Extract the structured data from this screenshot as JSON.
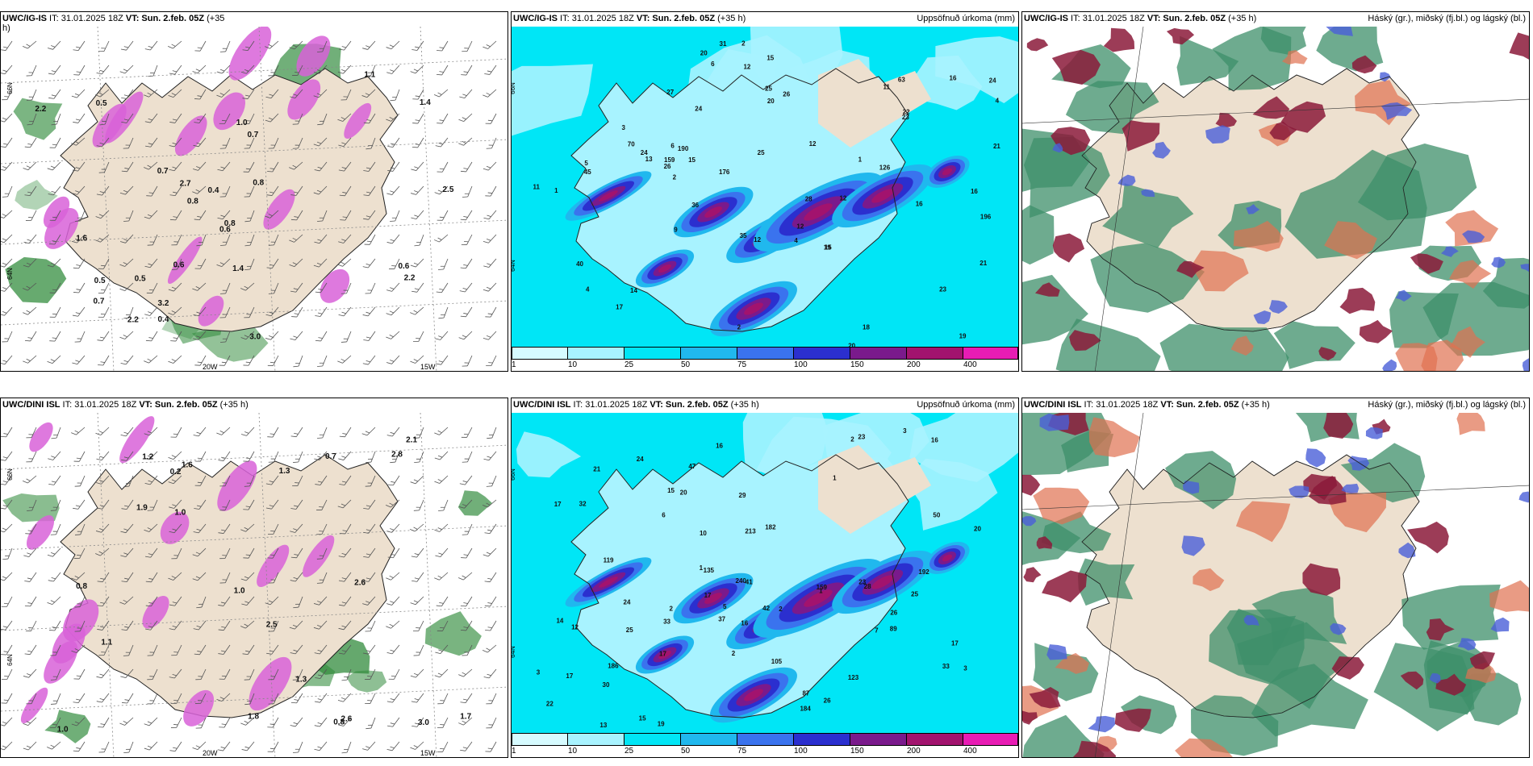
{
  "colors": {
    "land": "#ede0cf",
    "precip_scale": [
      "#d6fbff",
      "#a8f3ff",
      "#00e6f6",
      "#20b8ee",
      "#3a73ee",
      "#2b2fcf",
      "#7a1a8c",
      "#a2136e",
      "#e81cb4",
      "#f7b8ef"
    ],
    "snow": "#d862d8",
    "rain_green": "#2f8a3a",
    "cloud_high": "#8b1a3a",
    "cloud_mid": "#3e8f6a",
    "cloud_low": "#4a5fd8",
    "cloud_orange": "#e07050"
  },
  "colorbar": {
    "labels": [
      "1",
      "10",
      "25",
      "50",
      "75",
      "100",
      "150",
      "200",
      "400"
    ]
  },
  "rows": [
    {
      "panels": [
        {
          "kind": "wind",
          "title_model": "UWC/IG-IS",
          "title_rest": " IT: 31.01.2025 18Z ",
          "title_vt": "VT: Sun. 2.feb. 05Z",
          "title_lead": " (+35",
          "title_wrap": "h)",
          "right_title": "",
          "lon_labels": [
            "20W",
            "15W"
          ],
          "lat_labels": [
            "66N",
            "64N"
          ],
          "values": [
            "0.6",
            "0.4",
            "0.4",
            "0.5",
            "2.5",
            "1.0",
            "0.8",
            "0.7",
            "0.8",
            "0.5",
            "1.1",
            "0.8",
            "0.7",
            "0.5",
            "0.7",
            "2.7",
            "3.2",
            "2.2",
            "3.0",
            "0.6",
            "0.6",
            "1.4",
            "2.2",
            "1.6",
            "1.4",
            "2.2"
          ]
        },
        {
          "kind": "precip",
          "title_model": "UWC/IG-IS",
          "title_rest": " IT: 31.01.2025 18Z ",
          "title_vt": "VT: Sun. 2.feb. 05Z",
          "title_lead": " (+35 h)",
          "right_title": "Uppsöfnuð úrkoma (mm)",
          "lat_labels": [
            "66N",
            "64N"
          ],
          "values": [
            "6",
            "2",
            "4",
            "1",
            "2",
            "1",
            "2",
            "45",
            "26",
            "24",
            "18",
            "11",
            "16",
            "5",
            "4",
            "6",
            "12",
            "13",
            "9",
            "3",
            "4",
            "12",
            "63",
            "24",
            "27",
            "21",
            "28",
            "25",
            "159",
            "176",
            "190",
            "40",
            "31",
            "36",
            "17",
            "19",
            "22",
            "20",
            "23",
            "21",
            "19",
            "16",
            "20",
            "24",
            "20",
            "26",
            "25",
            "23",
            "70",
            "126",
            "196",
            "35",
            "16",
            "12",
            "11",
            "12",
            "15",
            "14",
            "12",
            "15",
            "15"
          ]
        },
        {
          "kind": "cloud",
          "title_model": "UWC/IG-IS",
          "title_rest": " IT: 31.01.2025 18Z ",
          "title_vt": "VT: Sun. 2.feb. 05Z",
          "title_lead": " (+35 h)",
          "right_title": "Háský (gr.), miðský (fj.bl.) og lágský (bl.)"
        }
      ]
    },
    {
      "panels": [
        {
          "kind": "wind",
          "title_model": "UWC/DINI ISL",
          "title_rest": " IT: 31.01.2025 18Z ",
          "title_vt": "VT: Sun. 2.feb. 05Z",
          "title_lead": " (+35 h)",
          "title_wrap": "",
          "right_title": "",
          "lon_labels": [
            "20W",
            "15W"
          ],
          "lat_labels": [
            "66N",
            "64N"
          ],
          "values": [
            "0.2",
            "1.1",
            "1.6",
            "2.1",
            "2.8",
            "1.7",
            "2.5",
            "2.6",
            "3.0",
            "2.6",
            "1.3",
            "1.9",
            "1.8",
            "1.0",
            "0.8",
            "1.0",
            "1.2",
            "0.8",
            "1.0",
            "1.3",
            "0.7"
          ]
        },
        {
          "kind": "precip",
          "title_model": "UWC/DINI ISL",
          "title_rest": " IT: 31.01.2025 18Z ",
          "title_vt": "VT: Sun. 2.feb. 05Z",
          "title_lead": " (+35 h)",
          "right_title": "Uppsöfnuð úrkoma (mm)",
          "lat_labels": [
            "66N",
            "64N"
          ],
          "values": [
            "19",
            "2",
            "2",
            "3",
            "1",
            "2",
            "6",
            "3",
            "17",
            "16",
            "24",
            "47",
            "1",
            "5",
            "7",
            "10",
            "21",
            "33",
            "17",
            "26",
            "41",
            "1",
            "3",
            "2",
            "123",
            "28",
            "22",
            "42",
            "105",
            "135",
            "159",
            "37",
            "29",
            "32",
            "20",
            "17",
            "23",
            "24",
            "25",
            "33",
            "186",
            "50",
            "87",
            "240",
            "184",
            "213",
            "89",
            "182",
            "16",
            "17",
            "15",
            "14",
            "26",
            "25",
            "20",
            "23",
            "17",
            "30",
            "119",
            "192",
            "15",
            "12",
            "13",
            "16"
          ]
        },
        {
          "kind": "cloud",
          "title_model": "UWC/DINI ISL",
          "title_rest": " IT: 31.01.2025 18Z ",
          "title_vt": "VT: Sun. 2.feb. 05Z",
          "title_lead": " (+35 h)",
          "right_title": "Háský (gr.), miðský (fj.bl.) og lágský (bl.)"
        }
      ]
    }
  ]
}
